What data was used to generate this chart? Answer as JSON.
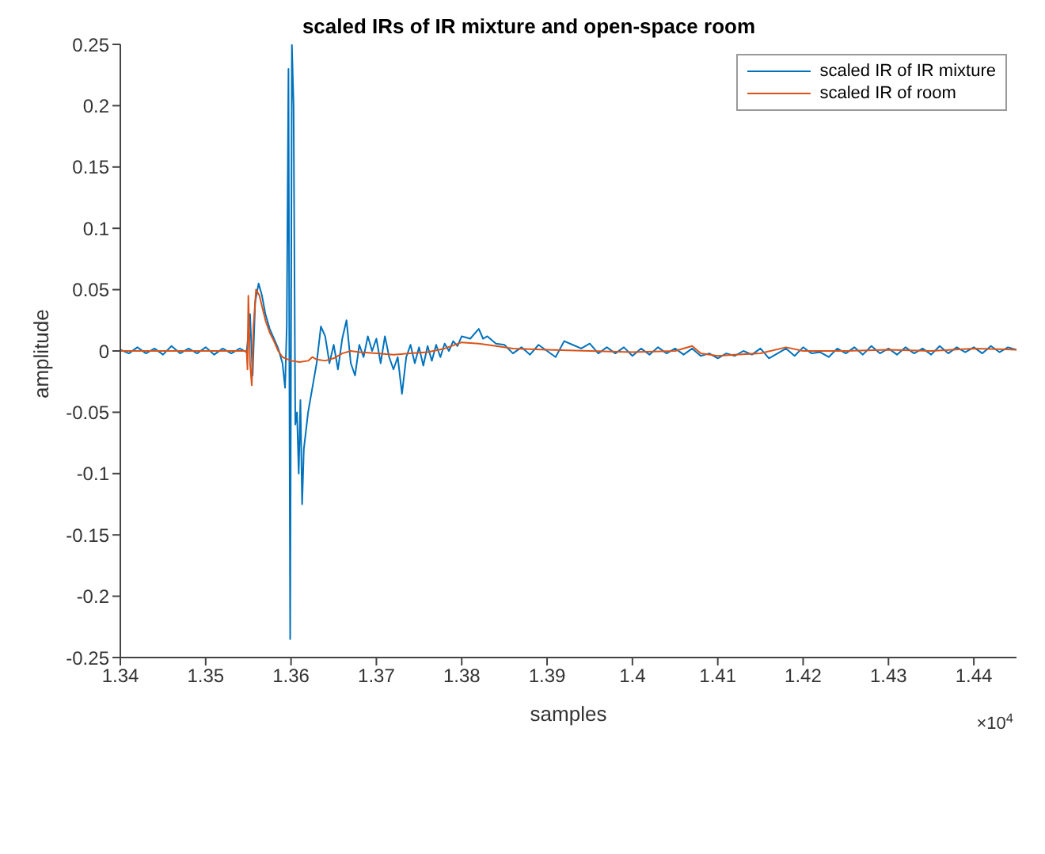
{
  "chart_data": {
    "type": "line",
    "title": "scaled IRs of IR mixture and open-space room",
    "xlabel": "samples",
    "ylabel": "amplitude",
    "annotations": [
      "×10$^{4}$"
    ],
    "xlim": [
      1.34,
      1.445
    ],
    "xticks": [
      1.34,
      1.35,
      1.36,
      1.37,
      1.38,
      1.39,
      1.4,
      1.41,
      1.42,
      1.43,
      1.44
    ],
    "ylim": [
      -0.25,
      0.25
    ],
    "yticks": [
      -0.25,
      -0.2,
      -0.15,
      -0.1,
      -0.05,
      0,
      0.05,
      0.1,
      0.15,
      0.2,
      0.25
    ],
    "legend": "top right",
    "marker": "none",
    "line_style": "solid",
    "series": [
      {
        "name": "scaled IR of IR mixture",
        "color": "#0072bd",
        "x": [
          1.34,
          1.341,
          1.342,
          1.343,
          1.344,
          1.345,
          1.346,
          1.347,
          1.348,
          1.349,
          1.35,
          1.351,
          1.352,
          1.353,
          1.354,
          1.3548,
          1.3552,
          1.3555,
          1.3558,
          1.3562,
          1.3566,
          1.357,
          1.3575,
          1.358,
          1.3585,
          1.359,
          1.3593,
          1.3595,
          1.3597,
          1.3599,
          1.3601,
          1.3603,
          1.3605,
          1.3607,
          1.3609,
          1.3611,
          1.3613,
          1.3615,
          1.362,
          1.3625,
          1.363,
          1.3635,
          1.364,
          1.3645,
          1.365,
          1.3655,
          1.366,
          1.3665,
          1.367,
          1.3675,
          1.368,
          1.3685,
          1.369,
          1.3695,
          1.37,
          1.3705,
          1.371,
          1.3715,
          1.372,
          1.3725,
          1.373,
          1.3735,
          1.374,
          1.3745,
          1.375,
          1.3755,
          1.376,
          1.3765,
          1.377,
          1.3775,
          1.378,
          1.3785,
          1.379,
          1.3795,
          1.38,
          1.381,
          1.382,
          1.3825,
          1.383,
          1.384,
          1.385,
          1.386,
          1.387,
          1.388,
          1.389,
          1.39,
          1.391,
          1.392,
          1.393,
          1.394,
          1.395,
          1.396,
          1.397,
          1.398,
          1.399,
          1.4,
          1.401,
          1.402,
          1.403,
          1.404,
          1.405,
          1.406,
          1.407,
          1.408,
          1.409,
          1.41,
          1.411,
          1.412,
          1.413,
          1.414,
          1.415,
          1.416,
          1.417,
          1.418,
          1.419,
          1.42,
          1.421,
          1.422,
          1.423,
          1.424,
          1.425,
          1.426,
          1.427,
          1.428,
          1.429,
          1.43,
          1.431,
          1.432,
          1.433,
          1.434,
          1.435,
          1.436,
          1.437,
          1.438,
          1.439,
          1.44,
          1.441,
          1.442,
          1.443,
          1.444,
          1.445
        ],
        "values": [
          0.001,
          -0.002,
          0.003,
          -0.002,
          0.002,
          -0.003,
          0.004,
          -0.002,
          0.002,
          -0.002,
          0.003,
          -0.003,
          0.002,
          -0.002,
          0.002,
          -0.001,
          0.03,
          -0.02,
          0.04,
          0.055,
          0.045,
          0.03,
          0.018,
          0.01,
          0.002,
          -0.01,
          -0.03,
          0.02,
          0.23,
          -0.235,
          0.25,
          0.2,
          -0.06,
          -0.05,
          -0.1,
          -0.04,
          -0.125,
          -0.08,
          -0.05,
          -0.03,
          -0.01,
          0.02,
          0.012,
          -0.01,
          0.005,
          -0.015,
          0.01,
          0.025,
          -0.01,
          -0.02,
          0.005,
          -0.005,
          0.012,
          0,
          0.01,
          -0.01,
          0.012,
          -0.005,
          -0.015,
          -0.005,
          -0.035,
          -0.005,
          0.005,
          -0.01,
          0.003,
          -0.012,
          0.004,
          -0.008,
          0.005,
          -0.005,
          0.006,
          0,
          0.008,
          0.004,
          0.012,
          0.01,
          0.018,
          0.01,
          0.012,
          0.006,
          0.005,
          -0.002,
          0.003,
          -0.003,
          0.005,
          0,
          -0.005,
          0.008,
          0.005,
          0.002,
          0.006,
          -0.002,
          0.003,
          -0.002,
          0.003,
          -0.004,
          0.002,
          -0.003,
          0.003,
          -0.002,
          0.002,
          -0.003,
          0.002,
          -0.004,
          -0.002,
          -0.006,
          -0.002,
          -0.004,
          0,
          -0.003,
          0.002,
          -0.006,
          -0.002,
          0.002,
          -0.004,
          0.003,
          -0.002,
          -0.001,
          -0.005,
          0.002,
          -0.002,
          0.003,
          -0.003,
          0.004,
          -0.002,
          0.002,
          -0.003,
          0.003,
          -0.002,
          0.002,
          -0.003,
          0.004,
          -0.002,
          0.003,
          -0.001,
          0.003,
          -0.002,
          0.004,
          -0.001,
          0.003,
          0.001
        ]
      },
      {
        "name": "scaled IR of room",
        "color": "#d95319",
        "x": [
          1.34,
          1.345,
          1.3548,
          1.3549,
          1.355,
          1.3552,
          1.3554,
          1.3556,
          1.3559,
          1.3563,
          1.357,
          1.3575,
          1.358,
          1.3585,
          1.359,
          1.36,
          1.361,
          1.362,
          1.3625,
          1.363,
          1.364,
          1.365,
          1.366,
          1.367,
          1.368,
          1.37,
          1.372,
          1.374,
          1.376,
          1.378,
          1.38,
          1.382,
          1.384,
          1.386,
          1.39,
          1.395,
          1.4,
          1.405,
          1.407,
          1.408,
          1.41,
          1.412,
          1.415,
          1.418,
          1.42,
          1.425,
          1.43,
          1.435,
          1.44,
          1.445
        ],
        "values": [
          0,
          0,
          0,
          -0.015,
          0.045,
          -0.01,
          -0.028,
          0.02,
          0.05,
          0.045,
          0.025,
          0.015,
          0.008,
          0,
          -0.005,
          -0.008,
          -0.009,
          -0.008,
          -0.005,
          -0.007,
          -0.008,
          -0.006,
          -0.002,
          0,
          -0.001,
          -0.002,
          -0.003,
          -0.002,
          -0.001,
          0.002,
          0.007,
          0.006,
          0.004,
          0.002,
          0.001,
          0,
          -0.001,
          0,
          0.004,
          -0.002,
          -0.004,
          -0.003,
          -0.002,
          0.003,
          0,
          0,
          0.001,
          0,
          0.002,
          0.001
        ]
      }
    ]
  }
}
